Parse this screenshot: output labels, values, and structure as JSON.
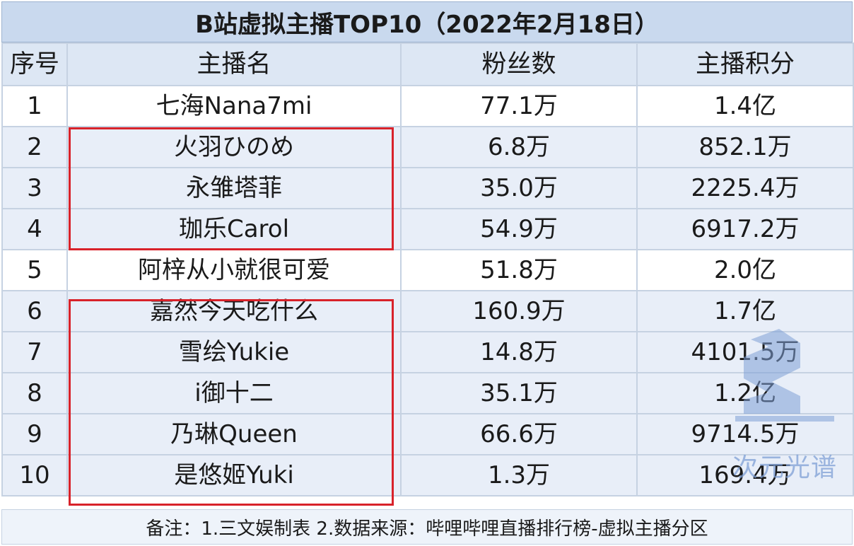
{
  "title": "B站虚拟主播TOP10（2022年2月18日）",
  "columns": [
    "序号",
    "主播名",
    "粉丝数",
    "主播积分"
  ],
  "rows": [
    {
      "rank": "1",
      "name": "七海Nana7mi",
      "fans": "77.1万",
      "score": "1.4亿"
    },
    {
      "rank": "2",
      "name": "火羽ひのめ",
      "fans": "6.8万",
      "score": "852.1万"
    },
    {
      "rank": "3",
      "name": "永雏塔菲",
      "fans": "35.0万",
      "score": "2225.4万"
    },
    {
      "rank": "4",
      "name": "珈乐Carol",
      "fans": "54.9万",
      "score": "6917.2万"
    },
    {
      "rank": "5",
      "name": "阿梓从小就很可爱",
      "fans": "51.8万",
      "score": "2.0亿"
    },
    {
      "rank": "6",
      "name": "嘉然今天吃什么",
      "fans": "160.9万",
      "score": "1.7亿"
    },
    {
      "rank": "7",
      "name": "雪绘Yukie",
      "fans": "14.8万",
      "score": "4101.5万"
    },
    {
      "rank": "8",
      "name": "i御十二",
      "fans": "35.1万",
      "score": "1.2亿"
    },
    {
      "rank": "9",
      "name": "乃琳Queen",
      "fans": "66.6万",
      "score": "9714.5万"
    },
    {
      "rank": "10",
      "name": "是悠姬Yuki",
      "fans": "1.3万",
      "score": "169.4万"
    }
  ],
  "footer": "备注：1.三文娱制表 2.数据来源：哔哩哔哩直播排行榜-虚拟主播分区",
  "watermark": "次元光谱",
  "colors": {
    "header_bg": "#c9d9ee",
    "row_alt_bg": "#e8eef8",
    "highlight_border": "#d8222a"
  }
}
